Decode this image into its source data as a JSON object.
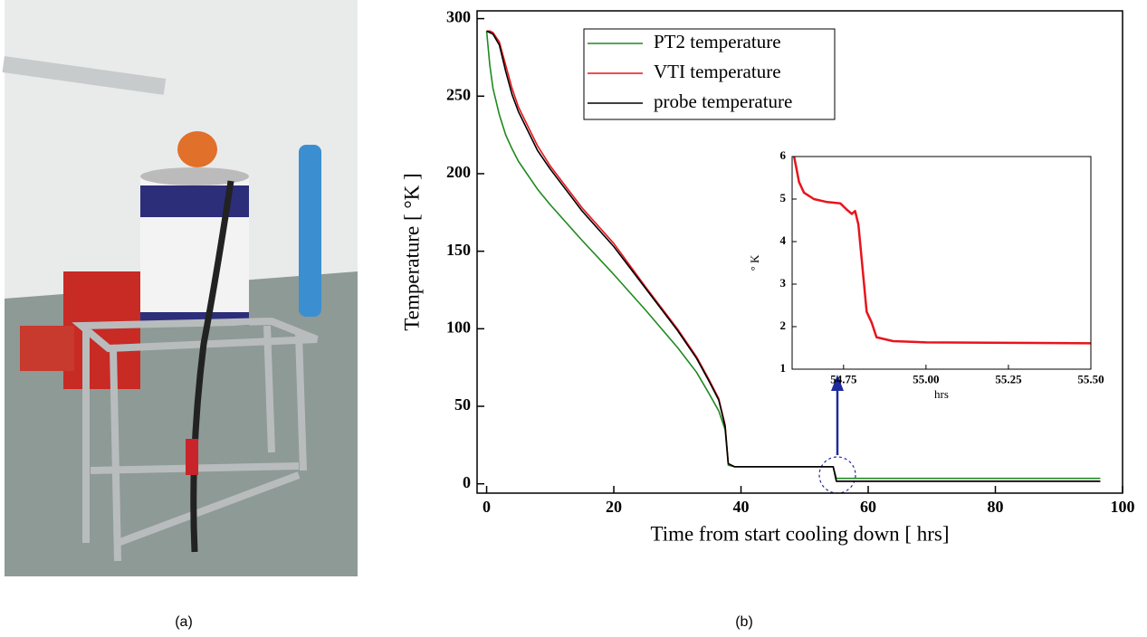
{
  "chart_data": [
    {
      "type": "line",
      "x_label": "Time from start cooling down [ hrs]",
      "y_label": "Temperature [ °K ]",
      "x": [
        0,
        0.5,
        1,
        2,
        3,
        4,
        5,
        8,
        10,
        15,
        20,
        25,
        30,
        33,
        35,
        36.5,
        37.5,
        38,
        39,
        45,
        50,
        54.5,
        55,
        60,
        80,
        96.5
      ],
      "series": [
        {
          "name": "PT2 temperature",
          "color": "#1f8a1f",
          "values": [
            292,
            270,
            255,
            238,
            225,
            216,
            208,
            190,
            180,
            157,
            135,
            112,
            88,
            72,
            58,
            47,
            35,
            12,
            11,
            11,
            11,
            11,
            3.5,
            3.5,
            3.5,
            3.5
          ]
        },
        {
          "name": "VTI temperature",
          "color": "#e8141c",
          "values": [
            292,
            292,
            291,
            285,
            270,
            255,
            243,
            218,
            205,
            178,
            155,
            127,
            100,
            82,
            67,
            55,
            38,
            13,
            11,
            11,
            11,
            11,
            1.6,
            1.6,
            1.6,
            1.6
          ]
        },
        {
          "name": "probe temperature",
          "color": "#000000",
          "values": [
            292,
            291,
            290,
            283,
            266,
            251,
            240,
            215,
            203,
            176,
            153,
            126,
            99,
            81,
            66,
            54,
            37,
            13,
            11,
            11,
            11,
            11,
            1.7,
            1.7,
            1.7,
            1.7
          ]
        }
      ],
      "xlim": [
        -1.5,
        100
      ],
      "ylim": [
        -6,
        305
      ],
      "xticks": [
        0,
        20,
        40,
        60,
        80,
        100
      ],
      "yticks": [
        0,
        50,
        100,
        150,
        200,
        250,
        300
      ],
      "legend": "upper center"
    },
    {
      "type": "line",
      "x_label": "hrs",
      "y_label": "° K",
      "x": [
        54.6,
        54.615,
        54.63,
        54.66,
        54.7,
        54.74,
        54.76,
        54.775,
        54.785,
        54.795,
        54.82,
        54.835,
        54.85,
        54.9,
        55,
        55.25,
        55.5
      ],
      "series": [
        {
          "color": "#e8141c",
          "values": [
            6,
            5.4,
            5.15,
            5.0,
            4.93,
            4.9,
            4.75,
            4.65,
            4.72,
            4.4,
            2.35,
            2.1,
            1.75,
            1.66,
            1.63,
            1.62,
            1.61
          ]
        }
      ],
      "xlim": [
        54.594,
        55.5
      ],
      "ylim": [
        1,
        6
      ],
      "xticks": [
        {
          "value": 54.75,
          "label": "54.75"
        },
        {
          "value": 55,
          "label": "55.00"
        },
        {
          "value": 55.25,
          "label": "55.25"
        },
        {
          "value": 55.5,
          "label": "55.50"
        }
      ],
      "yticks": [
        1,
        2,
        3,
        4,
        5,
        6
      ]
    }
  ],
  "captions": [
    "(a)",
    "(b)"
  ]
}
